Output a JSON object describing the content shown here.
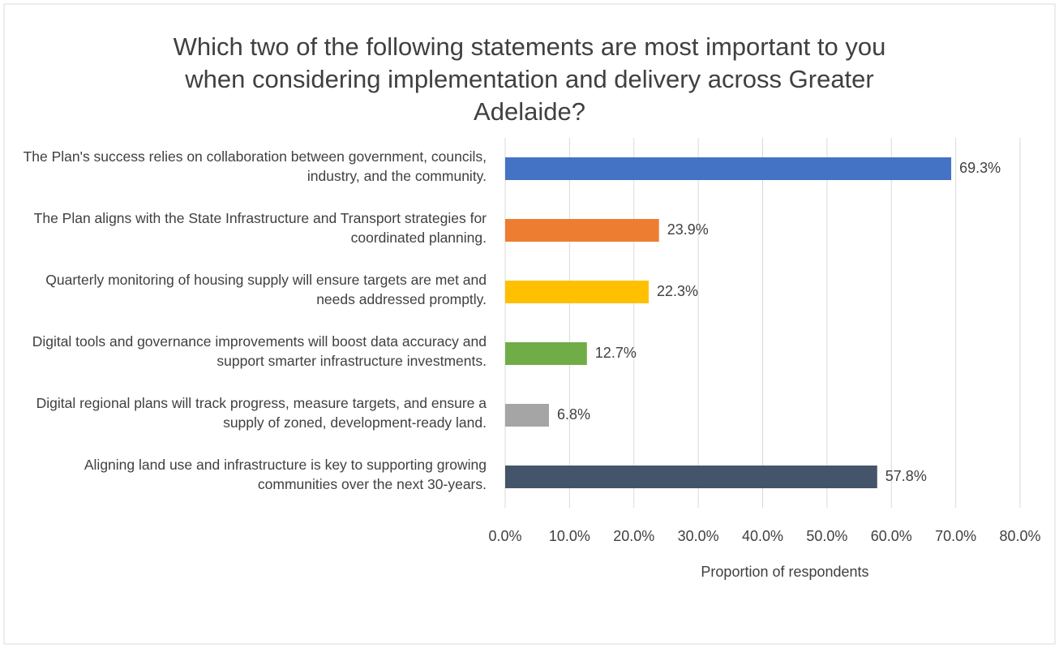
{
  "chart_data": {
    "type": "hbar",
    "title": "Which two of the following statements are most important to you when considering implementation and delivery across Greater Adelaide?",
    "x_label": "Proportion of respondents",
    "categories": [
      "The Plan's success relies on collaboration between government, councils, industry, and the community.",
      "The Plan aligns with the State Infrastructure and Transport strategies for coordinated planning.",
      "Quarterly monitoring of housing supply will ensure targets are met and needs addressed promptly.",
      "Digital tools and governance improvements will boost data accuracy and support smarter infrastructure investments.",
      "Digital regional plans will track progress, measure targets, and ensure a supply of zoned, development-ready land.",
      "Aligning land use and infrastructure is key to supporting growing communities over the next 30-years."
    ],
    "values": [
      69.3,
      23.9,
      22.3,
      12.7,
      6.8,
      57.8
    ],
    "value_labels": [
      "69.3%",
      "23.9%",
      "22.3%",
      "12.7%",
      "6.8%",
      "57.8%"
    ],
    "colors": [
      "#4472c4",
      "#ed7d31",
      "#ffc000",
      "#70ad47",
      "#a5a5a5",
      "#44546a"
    ],
    "xlim": [
      0,
      80
    ],
    "xticks": [
      {
        "value": 0,
        "label": "0.0%"
      },
      {
        "value": 10,
        "label": "10.0%"
      },
      {
        "value": 20,
        "label": "20.0%"
      },
      {
        "value": 30,
        "label": "30.0%"
      },
      {
        "value": 40,
        "label": "40.0%"
      },
      {
        "value": 50,
        "label": "50.0%"
      },
      {
        "value": 60,
        "label": "60.0%"
      },
      {
        "value": 70,
        "label": "70.0%"
      },
      {
        "value": 80,
        "label": "80.0%"
      }
    ],
    "grid": true
  }
}
